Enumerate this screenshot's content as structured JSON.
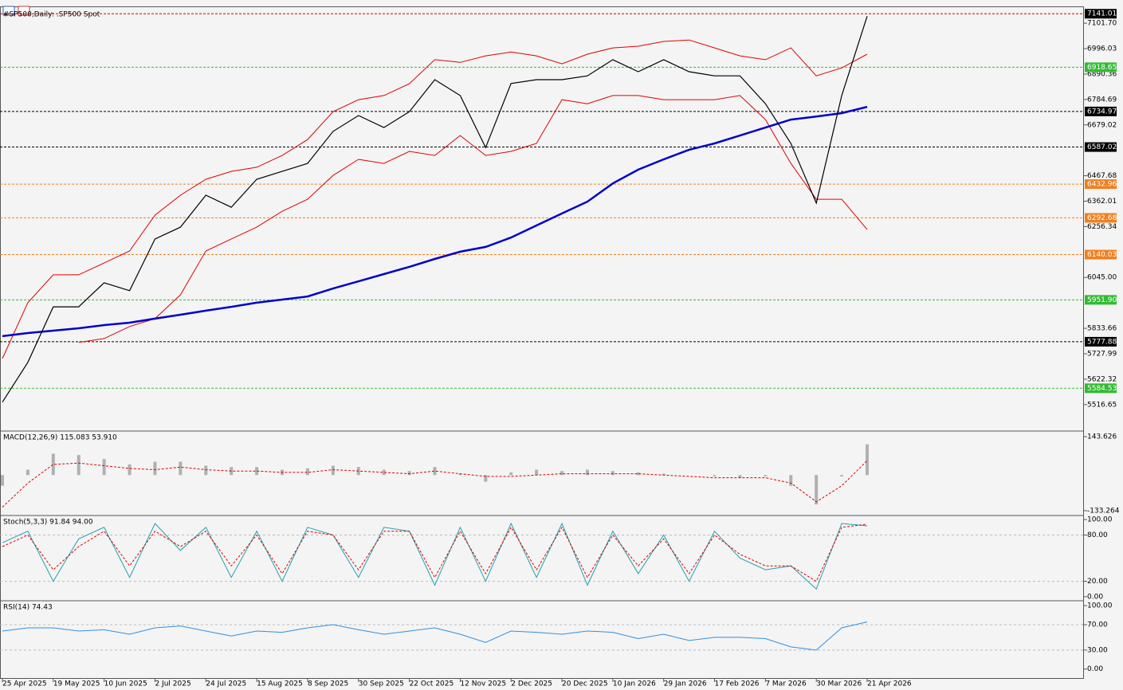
{
  "chart_data": [
    {
      "type": "line",
      "title": "#SP500,Daily: .SP500 Spot",
      "categories": [
        "25 Apr 2025",
        null,
        "19 May 2025",
        null,
        "10 Jun 2025",
        null,
        "2 Jul 2025",
        null,
        "24 Jul 2025",
        null,
        "15 Aug 2025",
        null,
        "8 Sep 2025",
        null,
        "30 Sep 2025",
        null,
        "22 Oct 2025",
        null,
        "12 Nov 2025",
        null,
        "2 Dec 2025",
        null,
        "20 Dec 2025",
        null,
        "10 Jan 2026",
        null,
        "29 Jan 2026",
        null,
        "17 Feb 2026",
        null,
        "7 Mar 2026",
        null,
        "30 Mar 2026",
        null,
        "21 Apr 2026"
      ],
      "ylim": [
        5410,
        7165
      ],
      "yticks": [
        {
          "value": 7101.7,
          "label": "7101.70"
        },
        6996.03,
        6890.36,
        6784.69,
        6679.02,
        6467.68,
        6362.01,
        6256.34,
        {
          "value": 6045,
          "label": "6045.00"
        },
        5833.66,
        5727.99,
        5622.32,
        5516.65
      ],
      "levels": [
        {
          "value": 7141.01,
          "label": "7141.01",
          "color": "#cc0000",
          "box": "#000000"
        },
        {
          "value": 6918.65,
          "label": "6918.65",
          "color": "#33bb33",
          "box": "#33bb33"
        },
        {
          "value": 6734.97,
          "label": "6734.97",
          "color": "#000000",
          "box": "#000000"
        },
        {
          "value": 6587.02,
          "label": "6587.02",
          "color": "#000000",
          "box": "#000000"
        },
        {
          "value": 6432.96,
          "label": "6432.96",
          "color": "#f08020",
          "box": "#f08020"
        },
        {
          "value": 6292.68,
          "label": "6292.68",
          "color": "#f08020",
          "box": "#f08020"
        },
        {
          "value": 6140.03,
          "label": "6140.03",
          "color": "#f08020",
          "box": "#f08020"
        },
        {
          "value": 5951.9,
          "label": "5951.90",
          "color": "#33bb33",
          "box": "#33bb33"
        },
        {
          "value": 5777.88,
          "label": "5777.88",
          "color": "#000000",
          "box": "#000000"
        },
        {
          "value": 5584.53,
          "label": "5584.53",
          "color": "#33bb33",
          "box": "#33bb33"
        }
      ],
      "series": [
        {
          "type": "line",
          "color": "#e00000",
          "width": 1,
          "values": [
            5708,
            5940,
            6056,
            6056,
            6105,
            6155,
            6304,
            6387,
            6453,
            6486,
            6503,
            6552,
            6618,
            6734,
            6784,
            6801,
            6850,
            6950,
            6939,
            6966,
            6982,
            6966,
            6933,
            6973,
            6999,
            7006,
            7026,
            7032,
            6999,
            6966,
            6950,
            6999,
            6883,
            6916,
            6973
          ]
        },
        {
          "type": "line",
          "color": "#e00000",
          "width": 1,
          "values": [
            null,
            null,
            null,
            5775,
            5791,
            5841,
            5874,
            5973,
            6155,
            6205,
            6254,
            6320,
            6370,
            6469,
            6536,
            6519,
            6569,
            6552,
            6635,
            6552,
            6569,
            6602,
            6784,
            6767,
            6801,
            6801,
            6784,
            6784,
            6784,
            6801,
            6701,
            6519,
            6370,
            6370,
            6244
          ]
        },
        {
          "type": "line",
          "color": "#0000cc",
          "width": 2.5,
          "values": [
            5801,
            5814,
            5824,
            5834,
            5847,
            5857,
            5874,
            5890,
            5907,
            5923,
            5940,
            5953,
            5966,
            5999,
            6029,
            6059,
            6089,
            6122,
            6152,
            6172,
            6211,
            6261,
            6311,
            6360,
            6436,
            6493,
            6536,
            6576,
            6602,
            6635,
            6668,
            6701,
            6714,
            6728,
            6754
          ]
        },
        {
          "type": "line",
          "color": "#000000",
          "width": 1.2,
          "values": [
            5527,
            5692,
            5923,
            5923,
            6023,
            5990,
            6205,
            6254,
            6387,
            6337,
            6453,
            6486,
            6519,
            6652,
            6718,
            6668,
            6734,
            6867,
            6801,
            6585,
            6851,
            6867,
            6867,
            6883,
            6950,
            6900,
            6950,
            6900,
            6883,
            6883,
            6767,
            6602,
            6354,
            6801,
            7131
          ]
        }
      ]
    },
    {
      "type": "line",
      "title": "MACD(12,26,9) 115.083 53.910",
      "ylim": [
        -148.3,
        164.7
      ],
      "yticks": [
        143.626,
        -133.264
      ],
      "levels": [],
      "series": [
        {
          "type": "bar",
          "color": "#b0b0b0",
          "values": [
            -40,
            20,
            80,
            75,
            60,
            40,
            50,
            50,
            35,
            30,
            30,
            20,
            25,
            35,
            30,
            20,
            15,
            30,
            5,
            -25,
            10,
            20,
            15,
            20,
            15,
            10,
            5,
            0,
            -5,
            -10,
            -5,
            -40,
            -110,
            -5,
            115.083
          ]
        },
        {
          "type": "line",
          "color": "#e00000",
          "width": 1,
          "dash": true,
          "values": [
            -120,
            -30,
            40,
            45,
            35,
            25,
            20,
            30,
            20,
            15,
            15,
            10,
            10,
            20,
            15,
            10,
            5,
            15,
            5,
            -5,
            -5,
            0,
            5,
            5,
            5,
            5,
            0,
            -5,
            -10,
            -10,
            -10,
            -30,
            -100,
            -40,
            53.91
          ]
        }
      ]
    },
    {
      "type": "line",
      "title": "Stoch(5,3,3) 91.84 94.00",
      "ylim": [
        -4.2,
        105.3
      ],
      "yticks": [
        {
          "value": 100,
          "label": "100.00"
        },
        {
          "value": 80,
          "label": "80.00"
        },
        {
          "value": 20,
          "label": "20.00"
        },
        {
          "value": 0,
          "label": "0.00"
        }
      ],
      "hlines": [
        80,
        20
      ],
      "levels": [],
      "series": [
        {
          "type": "line",
          "color": "#20a0b0",
          "width": 1,
          "values": [
            70,
            85,
            20,
            75,
            90,
            25,
            95,
            60,
            90,
            25,
            85,
            20,
            90,
            80,
            25,
            90,
            85,
            15,
            90,
            20,
            95,
            25,
            95,
            15,
            85,
            30,
            80,
            20,
            85,
            50,
            35,
            40,
            10,
            95,
            91.84
          ]
        },
        {
          "type": "line",
          "color": "#e00000",
          "width": 1,
          "dash": true,
          "values": [
            65,
            80,
            35,
            65,
            85,
            40,
            85,
            65,
            85,
            40,
            80,
            30,
            85,
            80,
            35,
            85,
            85,
            25,
            85,
            30,
            90,
            35,
            90,
            25,
            80,
            40,
            75,
            30,
            80,
            55,
            40,
            40,
            20,
            90,
            94
          ]
        }
      ]
    },
    {
      "type": "line",
      "title": "RSI(14) 74.43",
      "ylim": [
        -15.4,
        107.7
      ],
      "yticks": [
        {
          "value": 100,
          "label": "100.00"
        },
        {
          "value": 70,
          "label": "70.00"
        },
        {
          "value": 30,
          "label": "30.00"
        },
        {
          "value": 0,
          "label": "0.00"
        }
      ],
      "hlines": [
        70,
        30
      ],
      "levels": [],
      "series": [
        {
          "type": "line",
          "color": "#3090e0",
          "width": 1,
          "values": [
            60,
            65,
            65,
            60,
            62,
            55,
            65,
            68,
            60,
            52,
            60,
            58,
            65,
            70,
            62,
            55,
            60,
            65,
            55,
            42,
            60,
            58,
            55,
            60,
            58,
            48,
            55,
            45,
            50,
            50,
            48,
            35,
            30,
            65,
            74.43
          ]
        }
      ]
    }
  ]
}
